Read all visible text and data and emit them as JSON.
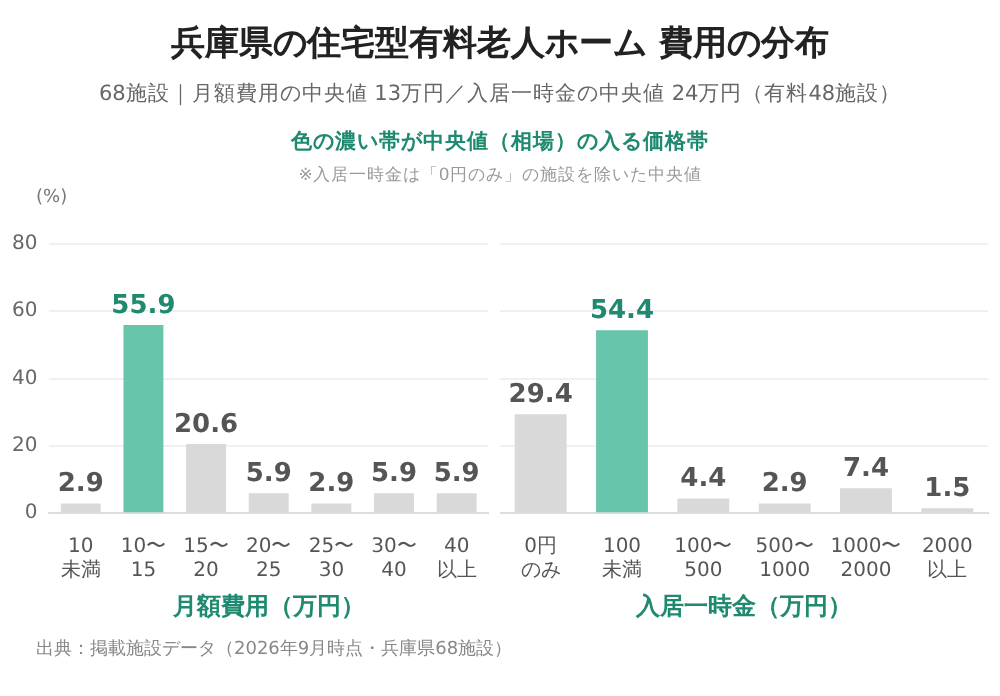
{
  "chart_data": [
    {
      "type": "bar",
      "title": "兵庫県の住宅型有料老人ホーム 費用の分布",
      "subtitle": "68施設｜月額費用の中央値 13万円／入居一時金の中央値 24万円（有料48施設）",
      "annotations": [
        "色の濃い帯が中央値（相場）の入る価格帯",
        "※入居一時金は「0円のみ」の施設を除いた中央値",
        "出典：掲載施設データ（2026年9月時点・兵庫県68施設）"
      ],
      "ylabel": "(%)",
      "xlabel": "月額費用（万円）",
      "categories": [
        "10\n未満",
        "10〜\n15",
        "15〜\n20",
        "20〜\n25",
        "25〜\n30",
        "30〜\n40",
        "40\n以上"
      ],
      "values": [
        2.9,
        55.9,
        20.6,
        5.9,
        2.9,
        5.9,
        5.9
      ],
      "colors": [
        "#d9d9d9",
        "#66c5aa",
        "#d9d9d9",
        "#d9d9d9",
        "#d9d9d9",
        "#d9d9d9",
        "#d9d9d9"
      ],
      "ylim": [
        0,
        80
      ],
      "yticks": [
        0,
        20,
        40,
        60,
        80
      ],
      "grid": "y",
      "data_labels": true,
      "legend": false
    },
    {
      "type": "bar",
      "xlabel": "入居一時金（万円）",
      "categories": [
        "0円のみ",
        "100\n未満",
        "100〜\n500",
        "500〜\n1000",
        "1000〜\n2000",
        "2000\n以上"
      ],
      "values": [
        29.4,
        54.4,
        4.4,
        2.9,
        7.4,
        1.5
      ],
      "colors": [
        "#d9d9d9",
        "#66c5aa",
        "#d9d9d9",
        "#d9d9d9",
        "#d9d9d9",
        "#d9d9d9"
      ],
      "ylim": [
        0,
        80
      ],
      "yticks": [
        0,
        20,
        40,
        60,
        80
      ],
      "grid": "y",
      "data_labels": true,
      "legend": false,
      "tick_labels": "x"
    }
  ]
}
